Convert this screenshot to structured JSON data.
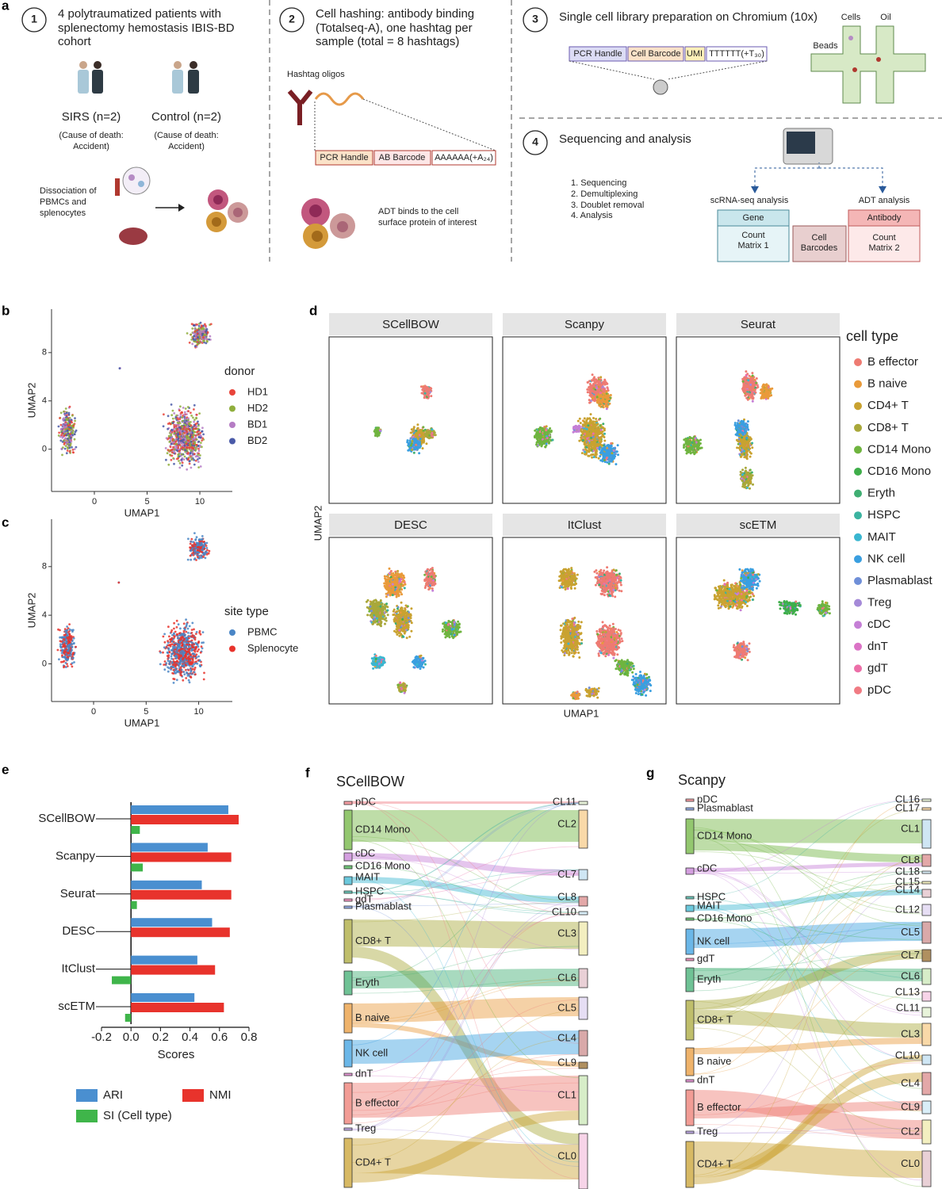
{
  "panel_letters": [
    "a",
    "b",
    "c",
    "d",
    "e",
    "f",
    "g"
  ],
  "panel_a": {
    "step1": {
      "number": "1",
      "lines": [
        "4 polytraumatized patients with",
        "splenectomy hemostasis IBIS-BD",
        "cohort"
      ]
    },
    "groups": [
      {
        "label": "SIRS (n=2)",
        "note": [
          "(Cause of death:",
          "Accident)"
        ]
      },
      {
        "label": "Control (n=2)",
        "note": [
          "(Cause of death:",
          "Accident)"
        ]
      }
    ],
    "dissociation": [
      "Dissociation of",
      "PBMCs and",
      "splenocytes"
    ],
    "step2": {
      "number": "2",
      "lines": [
        "Cell hashing: antibody binding",
        "(Totalseq-A), one hashtag per",
        "sample (total = 8 hashtags)"
      ]
    },
    "hashtag_label": "Hashtag oligos",
    "oligo_parts": [
      "PCR Handle",
      "AB Barcode",
      "AAAAAA(+A₂₄)"
    ],
    "adt_note": [
      "ADT binds to the cell",
      "surface protein of interest"
    ],
    "step3": {
      "number": "3",
      "lines": [
        "Single cell library preparation on Chromium (10x)"
      ]
    },
    "library_parts": [
      "PCR Handle",
      "Cell Barcode",
      "UMI",
      "TTTTTT(+T₃₀)"
    ],
    "chip_labels": [
      "Cells",
      "Oil",
      "Beads"
    ],
    "step4": {
      "number": "4",
      "lines": [
        "Sequencing and analysis"
      ]
    },
    "steps_list": [
      "1.  Sequencing",
      "2.  Demultiplexing",
      "3.  Doublet removal",
      "4.  Analysis"
    ],
    "branches": [
      "scRNA-seq analysis",
      "ADT analysis"
    ],
    "gene": {
      "header": "Gene",
      "body": [
        "Count",
        "Matrix 1"
      ]
    },
    "barcodes": [
      "Cell",
      "Barcodes"
    ],
    "antibody": {
      "header": "Antibody",
      "body": [
        "Count",
        "Matrix 2"
      ]
    }
  },
  "panel_b": {
    "xlabel": "UMAP1",
    "ylabel": "UMAP2",
    "xlim": [
      -4.06,
      13.08
    ],
    "ylim": [
      -3.5,
      11.6
    ],
    "xticks": [
      0,
      5,
      10
    ],
    "yticks": [
      0,
      4,
      8
    ],
    "legend_title": "donor",
    "legend": [
      {
        "name": "HD1",
        "color": "#e8443a"
      },
      {
        "name": "HD2",
        "color": "#8fae3c"
      },
      {
        "name": "BD1",
        "color": "#b57cc4"
      },
      {
        "name": "BD2",
        "color": "#4a5aa8"
      }
    ]
  },
  "panel_c": {
    "xlabel": "UMAP1",
    "ylabel": "UMAP2",
    "xlim": [
      -4.0,
      13.2
    ],
    "ylim": [
      -3.1,
      11.9
    ],
    "xticks": [
      0,
      5,
      10
    ],
    "yticks": [
      0,
      4,
      8
    ],
    "legend_title": "site type",
    "legend": [
      {
        "name": "PBMC",
        "color": "#4a86c6"
      },
      {
        "name": "Splenocyte",
        "color": "#e8332c"
      }
    ]
  },
  "panel_d": {
    "titles": [
      "SCellBOW",
      "Scanpy",
      "Seurat",
      "DESC",
      "ItClust",
      "scETM"
    ],
    "xlabel": "UMAP1",
    "ylabel": "UMAP2",
    "legend_title": "cell type",
    "legend": [
      {
        "name": "B effector",
        "color": "#ee7b72"
      },
      {
        "name": "B naive",
        "color": "#e99a3a"
      },
      {
        "name": "CD4+ T",
        "color": "#c9a230"
      },
      {
        "name": "CD8+ T",
        "color": "#a9a83a"
      },
      {
        "name": "CD14 Mono",
        "color": "#6fb43f"
      },
      {
        "name": "CD16 Mono",
        "color": "#3fae4a"
      },
      {
        "name": "Eryth",
        "color": "#3fae72"
      },
      {
        "name": "HSPC",
        "color": "#3bb3a0"
      },
      {
        "name": "MAIT",
        "color": "#3ab6d0"
      },
      {
        "name": "NK cell",
        "color": "#3a9fe0"
      },
      {
        "name": "Plasmablast",
        "color": "#6f8fd8"
      },
      {
        "name": "Treg",
        "color": "#a58ad8"
      },
      {
        "name": "cDC",
        "color": "#c57fd6"
      },
      {
        "name": "dnT",
        "color": "#db73c6"
      },
      {
        "name": "gdT",
        "color": "#ec6fa8"
      },
      {
        "name": "pDC",
        "color": "#f07b83"
      }
    ]
  },
  "chart_data": {
    "type": "bar",
    "orientation": "horizontal",
    "categories": [
      "SCellBOW",
      "Scanpy",
      "Seurat",
      "DESC",
      "ItClust",
      "scETM"
    ],
    "series": [
      {
        "name": "ARI",
        "color": "#4a8fd0",
        "values": [
          0.66,
          0.52,
          0.48,
          0.55,
          0.45,
          0.43
        ]
      },
      {
        "name": "NMI",
        "color": "#e8332c",
        "values": [
          0.73,
          0.68,
          0.68,
          0.67,
          0.57,
          0.63
        ]
      },
      {
        "name": "SI (Cell type)",
        "color": "#3fb54a",
        "values": [
          0.06,
          0.08,
          0.04,
          0,
          -0.13,
          -0.04
        ]
      }
    ],
    "xlabel": "Scores",
    "xlim": [
      -0.2,
      0.8
    ],
    "xticks": [
      -0.2,
      {
        "value": 0,
        "label": "0.0"
      },
      0.2,
      0.4,
      0.6,
      0.8
    ]
  },
  "panel_f": {
    "title": "SCellBOW",
    "left": [
      "pDC",
      "CD14 Mono",
      "cDC",
      "CD16 Mono",
      "MAIT",
      "HSPC",
      "gdT",
      "Plasmablast",
      "CD8+ T",
      "Eryth",
      "B naive",
      "NK cell",
      "dnT",
      "B effector",
      "Treg",
      "CD4+ T"
    ],
    "right": [
      "CL11",
      "CL2",
      "CL7",
      "CL8",
      "CL10",
      "CL3",
      "CL6",
      "CL5",
      "CL4",
      "CL9",
      "CL1",
      "CL0"
    ]
  },
  "panel_g": {
    "title": "Scanpy",
    "left": [
      "pDC",
      "Plasmablast",
      "CD14 Mono",
      "cDC",
      "HSPC",
      "MAIT",
      "CD16 Mono",
      "NK cell",
      "gdT",
      "Eryth",
      "CD8+ T",
      "B naive",
      "dnT",
      "B effector",
      "Treg",
      "CD4+ T"
    ],
    "right": [
      "CL16",
      "CL17",
      "CL1",
      "CL8",
      "CL18",
      "CL15",
      "CL14",
      "CL12",
      "CL5",
      "CL7",
      "CL6",
      "CL13",
      "CL11",
      "CL3",
      "CL10",
      "CL4",
      "CL9",
      "CL2",
      "CL0"
    ]
  }
}
